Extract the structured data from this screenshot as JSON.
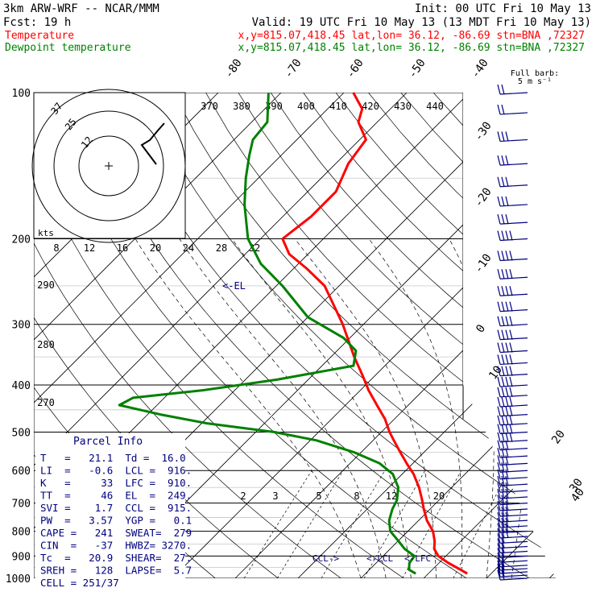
{
  "header": {
    "model": "3km ARW-WRF -- NCAR/MMM",
    "init": "Init: 00 UTC Fri 10 May 13",
    "fcst": "Fcst:   19 h",
    "valid": "Valid: 19 UTC Fri 10 May 13 (13 MDT Fri 10 May 13)"
  },
  "legend": [
    {
      "name": "Temperature",
      "info": "x,y=815.07,418.45   lat,lon= 36.12, -86.69   stn=BNA ,72327",
      "color": "#ff0000"
    },
    {
      "name": "Dewpoint temperature",
      "info": "x,y=815.07,418.45   lat,lon= 36.12, -86.69   stn=BNA ,72327",
      "color": "#008000"
    }
  ],
  "colors": {
    "temperature": "#ff0000",
    "dewpoint": "#008000",
    "wind": "#000080",
    "parcel_info": "#000080",
    "grid": "#000000"
  },
  "barb_scale": {
    "title": "Full barb:",
    "value": "5 m s⁻¹"
  },
  "hodograph": {
    "units": "kts",
    "rings": [
      "37",
      "25",
      "12"
    ],
    "center_marker": "+"
  },
  "pressure_labels": [
    "100",
    "200",
    "300",
    "400",
    "500",
    "600",
    "700",
    "800",
    "900",
    "1000"
  ],
  "isotherm_labels": [
    "-80",
    "-70",
    "-60",
    "-50",
    "-40",
    "-30",
    "-20",
    "-10",
    "0",
    "10",
    "20",
    "30",
    "40"
  ],
  "theta_labels": [
    "370",
    "380",
    "390",
    "400",
    "410",
    "420",
    "430",
    "440"
  ],
  "theta_left_labels": [
    "290",
    "280",
    "270"
  ],
  "kts_labels": [
    "8",
    "12",
    "16",
    "20",
    "24",
    "28",
    "32"
  ],
  "mixing_ratio_labels": [
    "2",
    "3",
    "5",
    "8",
    "12",
    "20"
  ],
  "level_markers": {
    "el": "<-EL",
    "ccl": "CCL->",
    "lcl": "<-LCL",
    "lfc": "<-LFC"
  },
  "parcel_info": {
    "title": "Parcel Info",
    "rows": [
      "T   =   21.1  Td =  16.0",
      "LI  =   -0.6  LCL =  916.",
      "K   =     33  LFC =  910.",
      "TT  =     46  EL  =  249.",
      "SVI =    1.7  CCL =  915.",
      "PW  =   3.57  YGP =   0.1",
      "CAPE =   241  SWEAT=  279",
      "CIN  =   -37  HWBZ= 3270.",
      "Tc  =   20.9  SHEAR=  27.",
      "SREH =   128  LAPSE=  5.7",
      "CELL = 251/37"
    ]
  },
  "chart_data": {
    "type": "line",
    "title": "",
    "y_axis": "pressure (hPa), log scale",
    "ylim": [
      1000,
      100
    ],
    "x_axis": "temperature (°C), skewed",
    "grid": true,
    "series": [
      {
        "name": "Temperature",
        "color": "#ff0000",
        "pressure": [
          978,
          960,
          930,
          900,
          870,
          840,
          800,
          760,
          720,
          690,
          650,
          610,
          580,
          550,
          520,
          500,
          470,
          440,
          410,
          380,
          350,
          300,
          270,
          250,
          230,
          215,
          200,
          180,
          160,
          140,
          125,
          115,
          108,
          100
        ],
        "values": [
          26.2,
          24.5,
          21.5,
          18.8,
          17,
          15.9,
          14,
          11.3,
          9,
          7.3,
          4.8,
          1.8,
          -1,
          -3.8,
          -6.7,
          -8.7,
          -11.5,
          -15,
          -18.7,
          -22.3,
          -26.3,
          -33.3,
          -38.5,
          -42.3,
          -48,
          -53,
          -56.5,
          -55.5,
          -55.5,
          -58,
          -59,
          -63,
          -64.5,
          -68.5
        ]
      },
      {
        "name": "Dewpoint temperature",
        "color": "#008000",
        "pressure": [
          978,
          960,
          930,
          900,
          870,
          840,
          800,
          760,
          720,
          690,
          650,
          610,
          580,
          550,
          520,
          500,
          480,
          460,
          440,
          425,
          410,
          390,
          365,
          340,
          320,
          290,
          250,
          225,
          200,
          170,
          150,
          135,
          125,
          115,
          100
        ],
        "values": [
          18,
          16.3,
          15.3,
          15,
          12.3,
          10.2,
          7.2,
          5.3,
          4,
          3.3,
          1.5,
          -1.5,
          -5.3,
          -11.2,
          -19,
          -27,
          -39,
          -48,
          -56,
          -55,
          -45,
          -35,
          -25,
          -27,
          -31,
          -40,
          -49,
          -56,
          -62,
          -68,
          -72,
          -75,
          -77,
          -77.5,
          -82
        ]
      }
    ],
    "wind": {
      "units": "m s-1",
      "pressure": [
        1000,
        985,
        970,
        955,
        940,
        920,
        900,
        880,
        860,
        840,
        820,
        800,
        780,
        760,
        740,
        720,
        700,
        680,
        660,
        640,
        620,
        600,
        580,
        560,
        540,
        520,
        500,
        480,
        460,
        440,
        420,
        400,
        380,
        360,
        340,
        320,
        300,
        280,
        260,
        240,
        220,
        200,
        185,
        170,
        155,
        140,
        125,
        110,
        100
      ],
      "speed": [
        10,
        10,
        10,
        12,
        12,
        13,
        13,
        14,
        14,
        14,
        15,
        15,
        15,
        16,
        16,
        16,
        17,
        17,
        17,
        18,
        18,
        18,
        19,
        19,
        19,
        20,
        20,
        20,
        21,
        21,
        22,
        22,
        22,
        22,
        23,
        23,
        23,
        22,
        22,
        21,
        21,
        20,
        19,
        18,
        17,
        16,
        15,
        14,
        13
      ],
      "direction": [
        250,
        250,
        255,
        255,
        260,
        260,
        260,
        262,
        262,
        264,
        264,
        266,
        266,
        268,
        268,
        270,
        270,
        270,
        272,
        272,
        272,
        274,
        274,
        274,
        275,
        275,
        276,
        276,
        276,
        277,
        277,
        278,
        278,
        278,
        279,
        279,
        280,
        280,
        280,
        281,
        281,
        282,
        282,
        282,
        283,
        283,
        284,
        284,
        285
      ]
    },
    "hodograph_rings": [
      37,
      25,
      12
    ]
  }
}
